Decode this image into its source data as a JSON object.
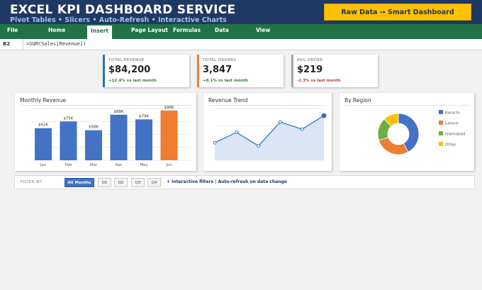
{
  "banner": {
    "title": "EXCEL KPI DASHBOARD SERVICE",
    "subtitle": "Pivot Tables  •  Slicers  •  Auto-Refresh  •  Interactive Charts",
    "cta_label": "Raw Data  →  Smart Dashboard",
    "background_color": "#1f3864",
    "cta_color": "#ffc000"
  },
  "ribbon": {
    "tabs": [
      "File",
      "Home",
      "Insert",
      "Page Layout",
      "Formulas",
      "Data",
      "View"
    ],
    "active_tab": "Insert",
    "color": "#217346"
  },
  "formula_bar": {
    "cell_ref": "B2",
    "formula": "=SUM(Sales[Revenue])"
  },
  "kpis": [
    {
      "label": "TOTAL REVENUE",
      "value": "$84,200",
      "delta": "+12.4% vs last month",
      "accent": "#2e75b6",
      "delta_color": "#2e7d32"
    },
    {
      "label": "TOTAL ORDERS",
      "value": "3,847",
      "delta": "+8.1% vs last month",
      "accent": "#ed7d31",
      "delta_color": "#2e7d32"
    },
    {
      "label": "AVG ORDER",
      "value": "$219",
      "delta": "-2.3% vs last month",
      "accent": "#a5a5a5",
      "delta_color": "#c0392b"
    }
  ],
  "panels": {
    "monthly_revenue_title": "Monthly Revenue",
    "revenue_trend_title": "Revenue Trend",
    "by_region_title": "By Region"
  },
  "chart_data": [
    {
      "type": "bar",
      "title": "Monthly Revenue",
      "categories": [
        "Jan",
        "Feb",
        "Mar",
        "Apr",
        "May",
        "Jun"
      ],
      "values": [
        62,
        75,
        58,
        88,
        79,
        96
      ],
      "data_labels": [
        "$62K",
        "$75K",
        "$58K",
        "$88K",
        "$79K",
        "$96K"
      ],
      "colors": [
        "#4472c4",
        "#4472c4",
        "#4472c4",
        "#4472c4",
        "#4472c4",
        "#ed7d31"
      ],
      "ylim": [
        0,
        100
      ],
      "grid": true
    },
    {
      "type": "area",
      "title": "Revenue Trend",
      "x": [
        1,
        2,
        3,
        4,
        5,
        6
      ],
      "values": [
        62,
        75,
        58,
        88,
        79,
        96
      ],
      "ylim": [
        40,
        105
      ],
      "color": "#2e75b6",
      "fill": "#dae6f6",
      "grid": true
    },
    {
      "type": "pie",
      "title": "By Region",
      "donut": true,
      "labels": [
        "Karachi",
        "Lahore",
        "Islamabad",
        "Other"
      ],
      "values": [
        42,
        28,
        18,
        12
      ],
      "colors": [
        "#4472c4",
        "#ed7d31",
        "#70ad47",
        "#ffc000"
      ],
      "legend": "right"
    }
  ],
  "filters": {
    "label": "FILTER BY:",
    "chips": [
      "All Months",
      "Q1",
      "Q2",
      "Q3",
      "Q4"
    ],
    "active": "All Months",
    "note": "+ Interactive filters  |  Auto-refresh on data change"
  }
}
